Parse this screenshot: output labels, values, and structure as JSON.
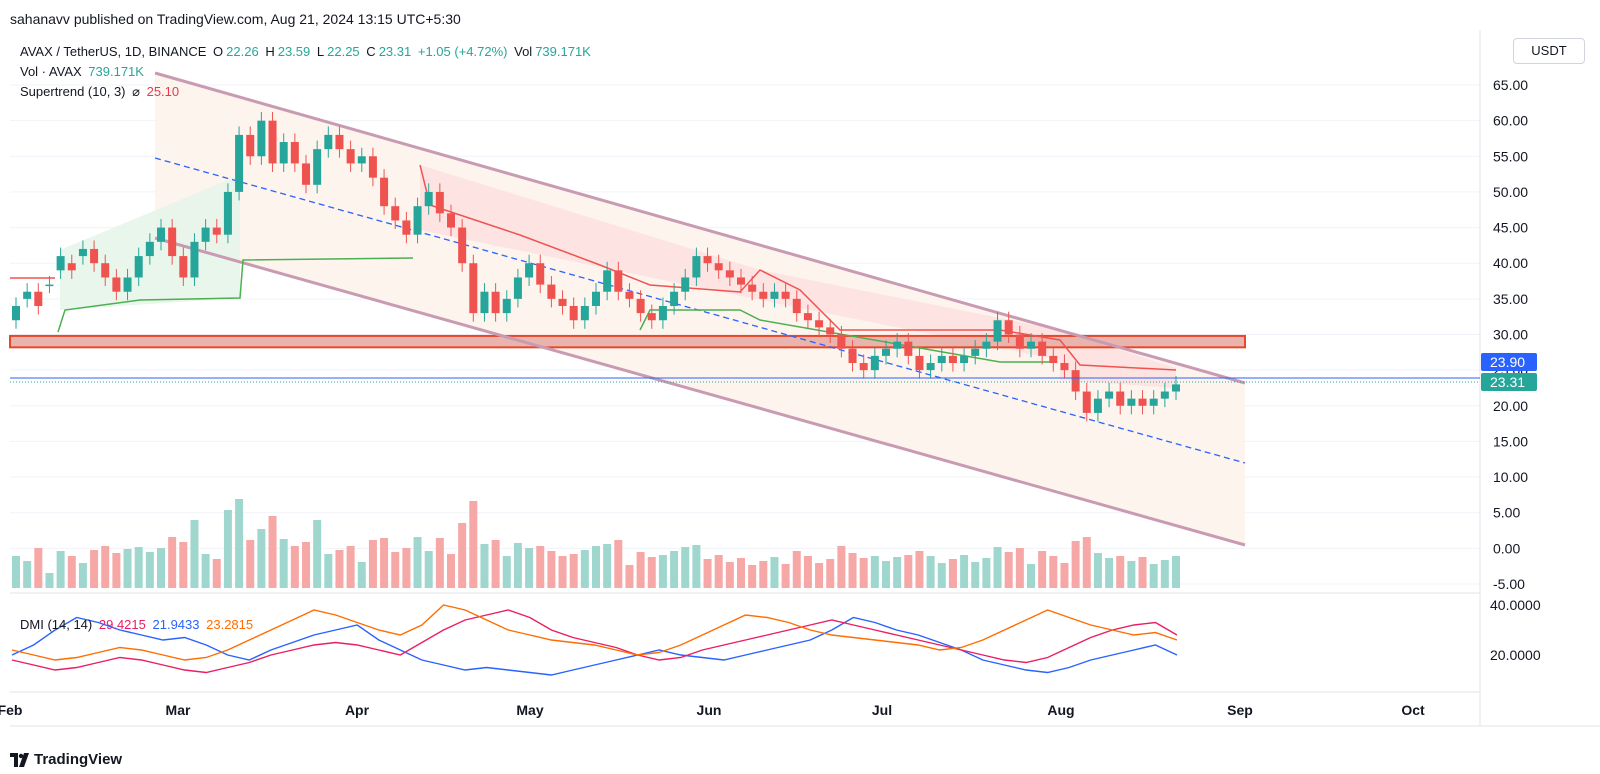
{
  "publisher": "sahanavv published on TradingView.com, Aug 21, 2024 13:15 UTC+5:30",
  "legend": {
    "symbol": "AVAX / TetherUS, 1D, BINANCE",
    "o_label": "O",
    "o": "22.26",
    "h_label": "H",
    "h": "23.59",
    "l_label": "L",
    "l": "22.25",
    "c_label": "C",
    "c": "23.31",
    "change": "+1.05 (+4.72%)",
    "vol_label": "Vol",
    "vol": "739.171K",
    "vol_line": "Vol · AVAX",
    "vol_value": "739.171K",
    "st_label": "Supertrend (10, 3)",
    "st_icon": "⌀",
    "st_value": "25.10",
    "dmi_label": "DMI (14, 14)",
    "dmi_v1": "29.4215",
    "dmi_v2": "21.9433",
    "dmi_v3": "23.2815"
  },
  "unit": "USDT",
  "footer": "TradingView",
  "colors": {
    "up": "#26a69a",
    "down": "#ef5350",
    "channel": "#c99bb2",
    "zone": "#e8472a",
    "mid": "#2962ff",
    "dmi_plus": "#2962ff",
    "dmi_minus": "#e91e63",
    "adx": "#ff6d00"
  },
  "chart_data": {
    "type": "candlestick",
    "price_axis": [
      "65.00",
      "60.00",
      "55.00",
      "50.00",
      "45.00",
      "40.00",
      "35.00",
      "30.00",
      "25.00",
      "20.00",
      "15.00",
      "10.00",
      "5.00",
      "0.00",
      "-5.00"
    ],
    "dmi_axis": [
      "40.0000",
      "20.0000"
    ],
    "time_axis": [
      "Feb",
      "Mar",
      "Apr",
      "May",
      "Jun",
      "Jul",
      "Aug",
      "Sep",
      "Oct"
    ],
    "price_badges": [
      {
        "value": "23.90",
        "color": "#2962ff"
      },
      {
        "value": "23.31",
        "color": "#26a69a"
      }
    ],
    "resistance_zone": [
      28.2,
      29.8
    ],
    "price_path": [
      [
        32,
        34
      ],
      [
        35,
        36
      ],
      [
        36,
        34
      ],
      [
        37,
        37
      ],
      [
        39,
        41
      ],
      [
        40,
        39
      ],
      [
        41,
        42
      ],
      [
        42,
        40
      ],
      [
        40,
        38
      ],
      [
        38,
        36
      ],
      [
        36,
        38
      ],
      [
        38,
        41
      ],
      [
        41,
        43
      ],
      [
        43,
        45
      ],
      [
        45,
        41
      ],
      [
        41,
        38
      ],
      [
        38,
        43
      ],
      [
        43,
        45
      ],
      [
        45,
        44
      ],
      [
        44,
        50
      ],
      [
        50,
        58
      ],
      [
        58,
        55
      ],
      [
        55,
        60
      ],
      [
        60,
        54
      ],
      [
        54,
        57
      ],
      [
        57,
        54
      ],
      [
        54,
        51
      ],
      [
        51,
        56
      ],
      [
        56,
        58
      ],
      [
        58,
        56
      ],
      [
        56,
        54
      ],
      [
        54,
        55
      ],
      [
        55,
        52
      ],
      [
        52,
        48
      ],
      [
        48,
        46
      ],
      [
        46,
        44
      ],
      [
        44,
        48
      ],
      [
        48,
        50
      ],
      [
        50,
        47
      ],
      [
        47,
        45
      ],
      [
        45,
        40
      ],
      [
        40,
        33
      ],
      [
        33,
        36
      ],
      [
        36,
        33
      ],
      [
        33,
        35
      ],
      [
        35,
        38
      ],
      [
        38,
        40
      ],
      [
        40,
        37
      ],
      [
        37,
        35
      ],
      [
        35,
        34
      ],
      [
        34,
        32
      ],
      [
        32,
        34
      ],
      [
        34,
        36
      ],
      [
        36,
        39
      ],
      [
        39,
        36
      ],
      [
        36,
        35
      ],
      [
        35,
        33
      ],
      [
        33,
        32
      ],
      [
        32,
        34
      ],
      [
        34,
        36
      ],
      [
        36,
        38
      ],
      [
        38,
        41
      ],
      [
        41,
        40
      ],
      [
        40,
        39
      ],
      [
        39,
        38
      ],
      [
        38,
        37
      ],
      [
        37,
        36
      ],
      [
        36,
        35
      ],
      [
        35,
        36
      ],
      [
        36,
        35
      ],
      [
        35,
        33
      ],
      [
        33,
        32
      ],
      [
        32,
        31
      ],
      [
        31,
        30
      ],
      [
        30,
        28
      ],
      [
        28,
        26
      ],
      [
        26,
        25
      ],
      [
        25,
        27
      ],
      [
        27,
        28
      ],
      [
        28,
        29
      ],
      [
        29,
        27
      ],
      [
        27,
        25
      ],
      [
        25,
        26
      ],
      [
        26,
        27
      ],
      [
        27,
        26
      ],
      [
        26,
        27
      ],
      [
        27,
        28
      ],
      [
        28,
        29
      ],
      [
        29,
        32
      ],
      [
        32,
        30
      ],
      [
        30,
        28
      ],
      [
        28,
        29
      ],
      [
        29,
        27
      ],
      [
        27,
        26
      ],
      [
        26,
        25
      ],
      [
        25,
        22
      ],
      [
        22,
        19
      ],
      [
        19,
        21
      ],
      [
        21,
        22
      ],
      [
        22,
        20
      ],
      [
        20,
        21
      ],
      [
        21,
        20
      ],
      [
        20,
        21
      ],
      [
        21,
        22
      ],
      [
        22,
        23
      ]
    ]
  }
}
